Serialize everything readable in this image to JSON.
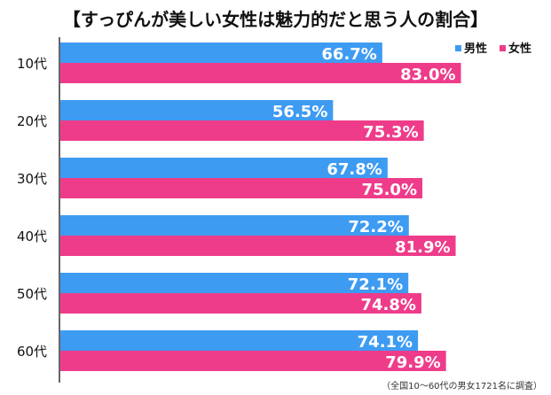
{
  "title": "【すっぴんが美しい女性は魅力的だと思う人の割合】",
  "source_note": "（全国10～60代の男女1721名に調査）",
  "chart_data": {
    "type": "bar",
    "orientation": "horizontal",
    "categories": [
      "10代",
      "20代",
      "30代",
      "40代",
      "50代",
      "60代"
    ],
    "series": [
      {
        "name": "男性",
        "color": "#3E9BF2",
        "values": [
          66.7,
          56.5,
          67.8,
          72.2,
          72.1,
          74.1
        ]
      },
      {
        "name": "女性",
        "color": "#EE3C8A",
        "values": [
          83.0,
          75.3,
          75.0,
          81.9,
          74.8,
          79.9
        ]
      }
    ],
    "value_suffix": "%",
    "xlim": [
      0,
      100
    ],
    "legend_position": "top-right",
    "grid": false,
    "data_labels": true
  }
}
